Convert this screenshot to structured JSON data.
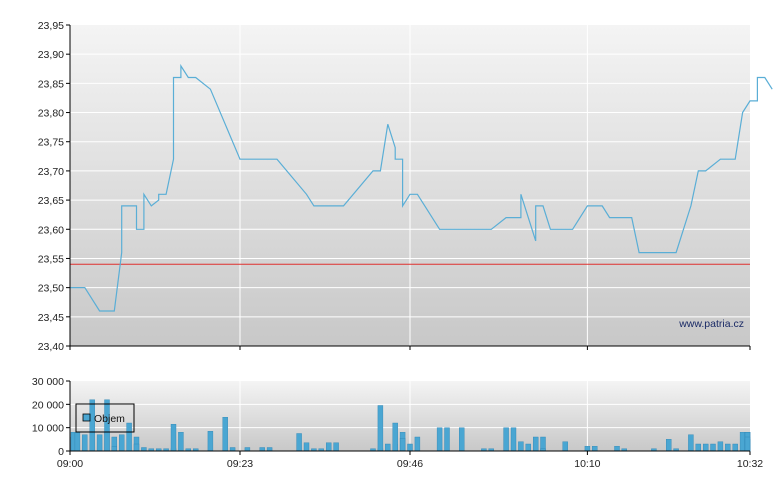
{
  "watermark": "www.patria.cz",
  "colors": {
    "price_line": "#5aaed6",
    "reference_line": "#e0312e",
    "volume_bar": "#4aa6d2",
    "volume_bar_edge": "#2f86b4",
    "grid": "#ffffff",
    "axis": "#000000",
    "plot_bg_top": "#f4f4f4",
    "plot_bg_bottom": "#c8c8c8"
  },
  "chart_data": [
    {
      "type": "line",
      "name": "price",
      "x_ticks": [
        "09:00",
        "09:23",
        "09:46",
        "10:10",
        "10:32"
      ],
      "x_range_minutes": [
        0,
        92
      ],
      "ylim": [
        23.4,
        23.95
      ],
      "y_ticks": [
        "23,40",
        "23,45",
        "23,50",
        "23,55",
        "23,60",
        "23,65",
        "23,70",
        "23,75",
        "23,80",
        "23,85",
        "23,90",
        "23,95"
      ],
      "reference_line": 23.54,
      "grid": true,
      "points": [
        [
          "09:00",
          23.5
        ],
        [
          "09:02",
          23.5
        ],
        [
          "09:04",
          23.46
        ],
        [
          "09:06",
          23.46
        ],
        [
          "09:07",
          23.56
        ],
        [
          "09:07",
          23.64
        ],
        [
          "09:09",
          23.64
        ],
        [
          "09:09",
          23.6
        ],
        [
          "09:10",
          23.6
        ],
        [
          "09:10",
          23.66
        ],
        [
          "09:11",
          23.64
        ],
        [
          "09:11",
          23.64
        ],
        [
          "09:12",
          23.65
        ],
        [
          "09:12",
          23.66
        ],
        [
          "09:13",
          23.66
        ],
        [
          "09:14",
          23.72
        ],
        [
          "09:14",
          23.86
        ],
        [
          "09:15",
          23.86
        ],
        [
          "09:15",
          23.88
        ],
        [
          "09:16",
          23.86
        ],
        [
          "09:17",
          23.86
        ],
        [
          "09:19",
          23.84
        ],
        [
          "09:21",
          23.78
        ],
        [
          "09:23",
          23.72
        ],
        [
          "09:28",
          23.72
        ],
        [
          "09:32",
          23.66
        ],
        [
          "09:33",
          23.64
        ],
        [
          "09:37",
          23.64
        ],
        [
          "09:41",
          23.7
        ],
        [
          "09:42",
          23.7
        ],
        [
          "09:43",
          23.78
        ],
        [
          "09:44",
          23.74
        ],
        [
          "09:44",
          23.72
        ],
        [
          "09:45",
          23.72
        ],
        [
          "09:45",
          23.64
        ],
        [
          "09:45",
          23.64
        ],
        [
          "09:46",
          23.66
        ],
        [
          "09:47",
          23.66
        ],
        [
          "09:48",
          23.64
        ],
        [
          "09:50",
          23.6
        ],
        [
          "09:56",
          23.6
        ],
        [
          "09:57",
          23.6
        ],
        [
          "09:59",
          23.62
        ],
        [
          "10:01",
          23.62
        ],
        [
          "10:01",
          23.66
        ],
        [
          "10:03",
          23.58
        ],
        [
          "10:03",
          23.64
        ],
        [
          "10:04",
          23.64
        ],
        [
          "10:05",
          23.6
        ],
        [
          "10:08",
          23.6
        ],
        [
          "10:10",
          23.64
        ],
        [
          "10:12",
          23.64
        ],
        [
          "10:13",
          23.62
        ],
        [
          "10:16",
          23.62
        ],
        [
          "10:17",
          23.56
        ],
        [
          "10:22",
          23.56
        ],
        [
          "10:24",
          23.64
        ],
        [
          "10:25",
          23.7
        ],
        [
          "10:26",
          23.7
        ],
        [
          "10:28",
          23.72
        ],
        [
          "10:30",
          23.72
        ],
        [
          "10:31",
          23.8
        ],
        [
          "10:31",
          23.8
        ],
        [
          "10:32",
          23.82
        ],
        [
          "10:33",
          23.82
        ],
        [
          "10:33",
          23.86
        ],
        [
          "10:34",
          23.86
        ],
        [
          "10:35",
          23.84
        ]
      ]
    },
    {
      "type": "bar",
      "name": "volume",
      "legend": "Objem",
      "x_ticks": [
        "09:00",
        "09:23",
        "09:46",
        "10:10",
        "10:32"
      ],
      "x_range_minutes": [
        0,
        92
      ],
      "ylim": [
        0,
        30000
      ],
      "y_ticks": [
        "0",
        "10 000",
        "20 000",
        "30 000"
      ],
      "grid": true,
      "bars": [
        [
          "09:00",
          6000
        ],
        [
          "09:00",
          8000
        ],
        [
          "09:01",
          8000
        ],
        [
          "09:02",
          7000
        ],
        [
          "09:03",
          22000
        ],
        [
          "09:04",
          7000
        ],
        [
          "09:05",
          8000
        ],
        [
          "09:05",
          22000
        ],
        [
          "09:06",
          6000
        ],
        [
          "09:06",
          2000
        ],
        [
          "09:07",
          7000
        ],
        [
          "09:08",
          12000
        ],
        [
          "09:09",
          6000
        ],
        [
          "09:09",
          3000
        ],
        [
          "09:10",
          1500
        ],
        [
          "09:11",
          1000
        ],
        [
          "09:12",
          1000
        ],
        [
          "09:13",
          1000
        ],
        [
          "09:14",
          1000
        ],
        [
          "09:14",
          11500
        ],
        [
          "09:15",
          8000
        ],
        [
          "09:16",
          1000
        ],
        [
          "09:17",
          1000
        ],
        [
          "09:19",
          8500
        ],
        [
          "09:21",
          14500
        ],
        [
          "09:22",
          1500
        ],
        [
          "09:24",
          1500
        ],
        [
          "09:26",
          1500
        ],
        [
          "09:27",
          1500
        ],
        [
          "09:31",
          7500
        ],
        [
          "09:32",
          3500
        ],
        [
          "09:33",
          1000
        ],
        [
          "09:34",
          1000
        ],
        [
          "09:35",
          3500
        ],
        [
          "09:36",
          3500
        ],
        [
          "09:41",
          1000
        ],
        [
          "09:42",
          1000
        ],
        [
          "09:42",
          19500
        ],
        [
          "09:43",
          3000
        ],
        [
          "09:44",
          3000
        ],
        [
          "09:44",
          12000
        ],
        [
          "09:45",
          8000
        ],
        [
          "09:45",
          5500
        ],
        [
          "09:46",
          3000
        ],
        [
          "09:47",
          6000
        ],
        [
          "09:50",
          10000
        ],
        [
          "09:51",
          10000
        ],
        [
          "09:53",
          10000
        ],
        [
          "09:56",
          1000
        ],
        [
          "09:57",
          1000
        ],
        [
          "09:59",
          10000
        ],
        [
          "10:00",
          10000
        ],
        [
          "10:01",
          4000
        ],
        [
          "10:02",
          3000
        ],
        [
          "10:03",
          6000
        ],
        [
          "10:04",
          6000
        ],
        [
          "10:04",
          1000
        ],
        [
          "10:07",
          4000
        ],
        [
          "10:10",
          2000
        ],
        [
          "10:11",
          2000
        ],
        [
          "10:14",
          2000
        ],
        [
          "10:15",
          1000
        ],
        [
          "10:19",
          1000
        ],
        [
          "10:21",
          5000
        ],
        [
          "10:22",
          1000
        ],
        [
          "10:24",
          7000
        ],
        [
          "10:25",
          3000
        ],
        [
          "10:26",
          3000
        ],
        [
          "10:27",
          3000
        ],
        [
          "10:28",
          4000
        ],
        [
          "10:29",
          3000
        ],
        [
          "10:30",
          3000
        ],
        [
          "10:31",
          8000
        ],
        [
          "10:32",
          8000
        ],
        [
          "10:33",
          5000
        ],
        [
          "10:34",
          5000
        ],
        [
          "10:34",
          8000
        ],
        [
          "10:35",
          8000
        ],
        [
          "10:35",
          6000
        ]
      ]
    }
  ]
}
